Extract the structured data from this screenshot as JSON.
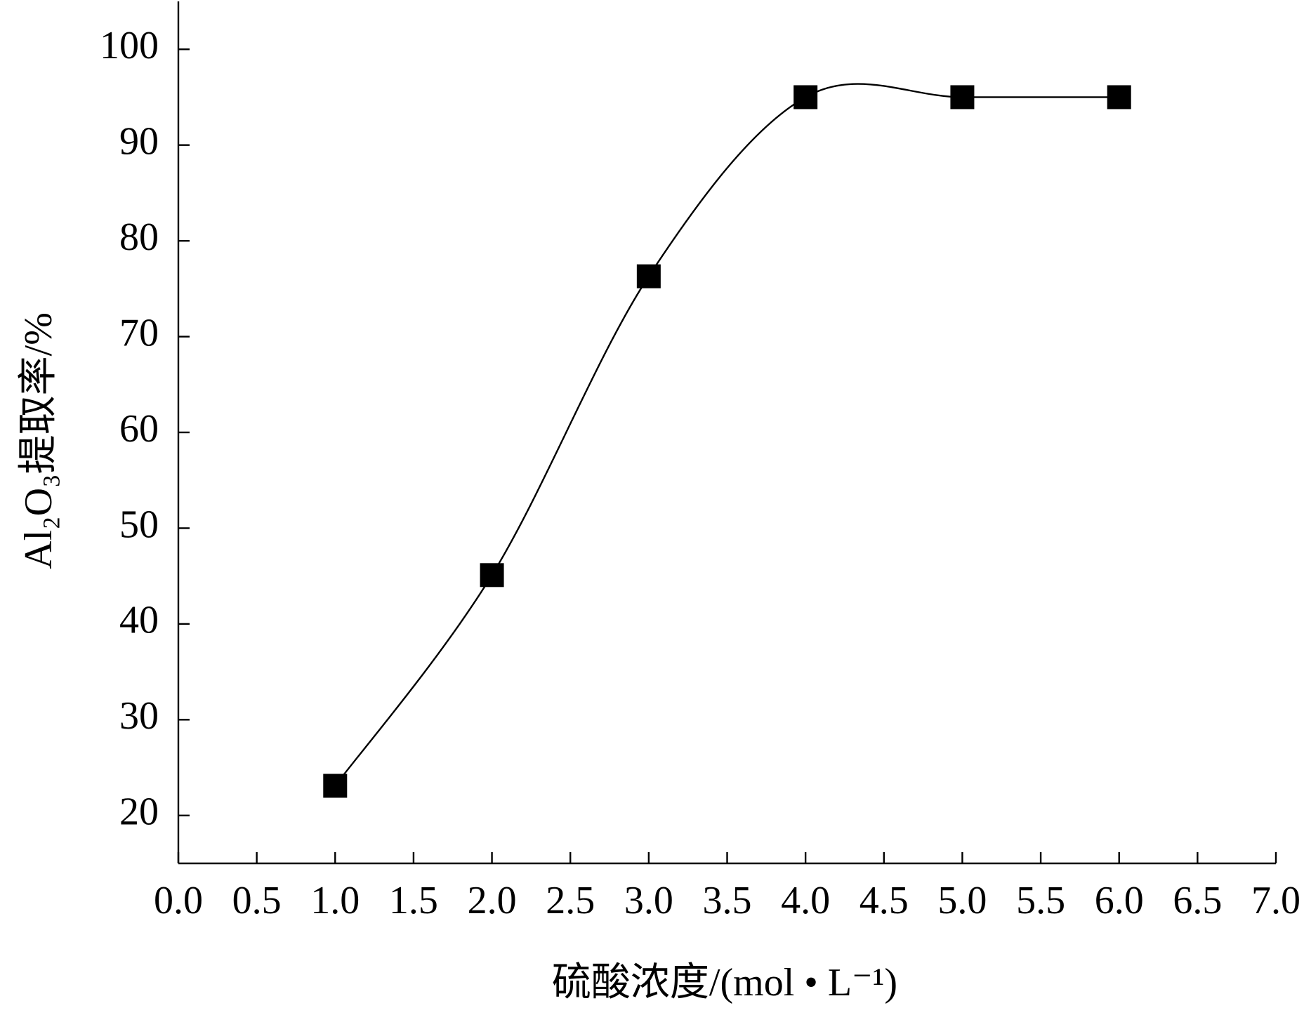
{
  "chart_data": {
    "type": "line",
    "xlabel": "硫酸浓度/(mol • L⁻¹)",
    "ylabel": "Al₂O₃提取率/%",
    "x": [
      1,
      2,
      3,
      4,
      5,
      6
    ],
    "series": [
      {
        "color": "#000000",
        "values": [
          23.1,
          45.1,
          76.3,
          95,
          95,
          95
        ]
      }
    ],
    "xlim": [
      0,
      7
    ],
    "xticks": [
      {
        "value": 0,
        "label": "0.0"
      },
      0.5,
      {
        "value": 1,
        "label": "1.0"
      },
      1.5,
      {
        "value": 2,
        "label": "2.0"
      },
      2.5,
      {
        "value": 3,
        "label": "3.0"
      },
      3.5,
      {
        "value": 4,
        "label": "4.0"
      },
      4.5,
      {
        "value": 5,
        "label": "5.0"
      },
      5.5,
      {
        "value": 6,
        "label": "6.0"
      },
      6.5,
      {
        "value": 7,
        "label": "7.0"
      }
    ],
    "ylim": [
      15,
      105
    ],
    "yticks": [
      20,
      30,
      40,
      50,
      60,
      70,
      80,
      90,
      100
    ],
    "smooth": true,
    "marker": "square"
  }
}
